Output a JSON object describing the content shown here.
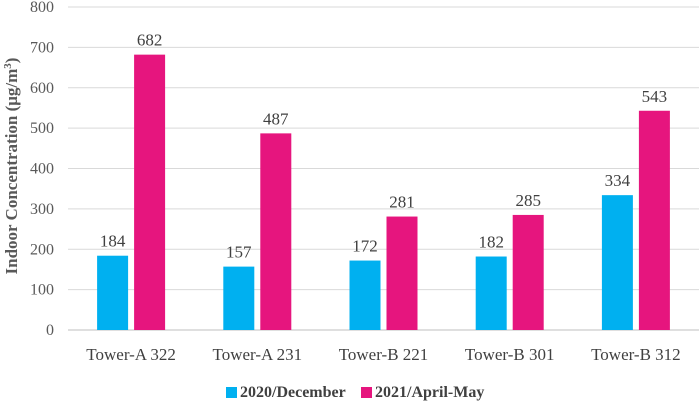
{
  "chart_data": {
    "type": "bar",
    "title": "",
    "xlabel": "",
    "ylabel": "Indoor Concentration (μg/m",
    "ylabel_sup": "3",
    "ylabel_close": ")",
    "ylim": [
      0,
      800
    ],
    "yticks": [
      0,
      100,
      200,
      300,
      400,
      500,
      600,
      700,
      800
    ],
    "grid": true,
    "legend_position": "bottom",
    "categories": [
      "Tower-A 322",
      "Tower-A 231",
      "Tower-B 221",
      "Tower-B 301",
      "Tower-B 312"
    ],
    "series": [
      {
        "name": "2020/December",
        "color": "#00b0f0",
        "values": [
          184,
          157,
          172,
          182,
          334
        ]
      },
      {
        "name": "2021/April-May",
        "color": "#e6157e",
        "values": [
          682,
          487,
          281,
          285,
          543
        ]
      }
    ]
  }
}
